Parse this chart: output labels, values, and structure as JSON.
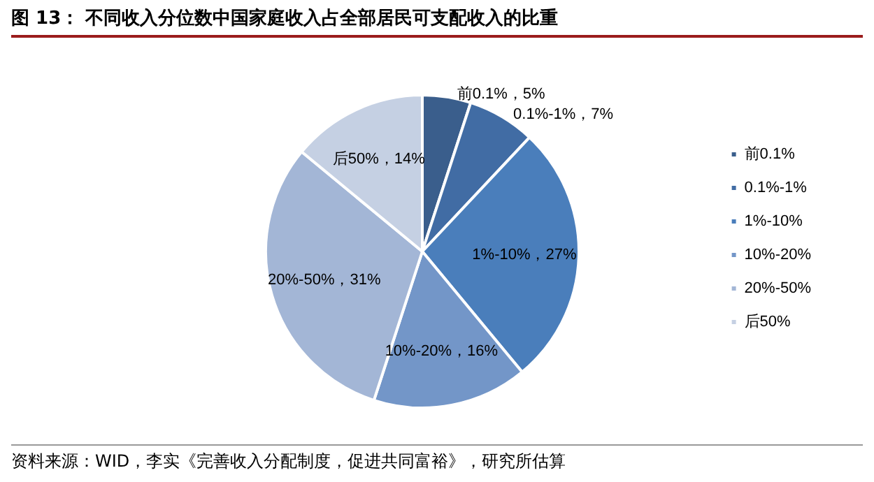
{
  "chart_data": {
    "type": "pie",
    "title": "图 13： 不同收入分位数中国家庭收入占全部居民可支配收入的比重",
    "categories": [
      "前0.1%",
      "0.1%-1%",
      "1%-10%",
      "10%-20%",
      "20%-50%",
      "后50%"
    ],
    "values": [
      5,
      7,
      27,
      16,
      31,
      14
    ],
    "colors": [
      "#3a5e8c",
      "#416ca4",
      "#4a7ebb",
      "#7396c8",
      "#a3b6d6",
      "#c5d0e3"
    ],
    "value_labels": [
      "前0.1%，5%",
      "0.1%-1%，7%",
      "1%-10%，27%",
      "10%-20%，16%",
      "20%-50%，31%",
      "后50%，14%"
    ],
    "legend": "right",
    "annotations": [
      "资料来源：WID，李实《完善收入分配制度，促进共同富裕》，研究所估算"
    ]
  }
}
